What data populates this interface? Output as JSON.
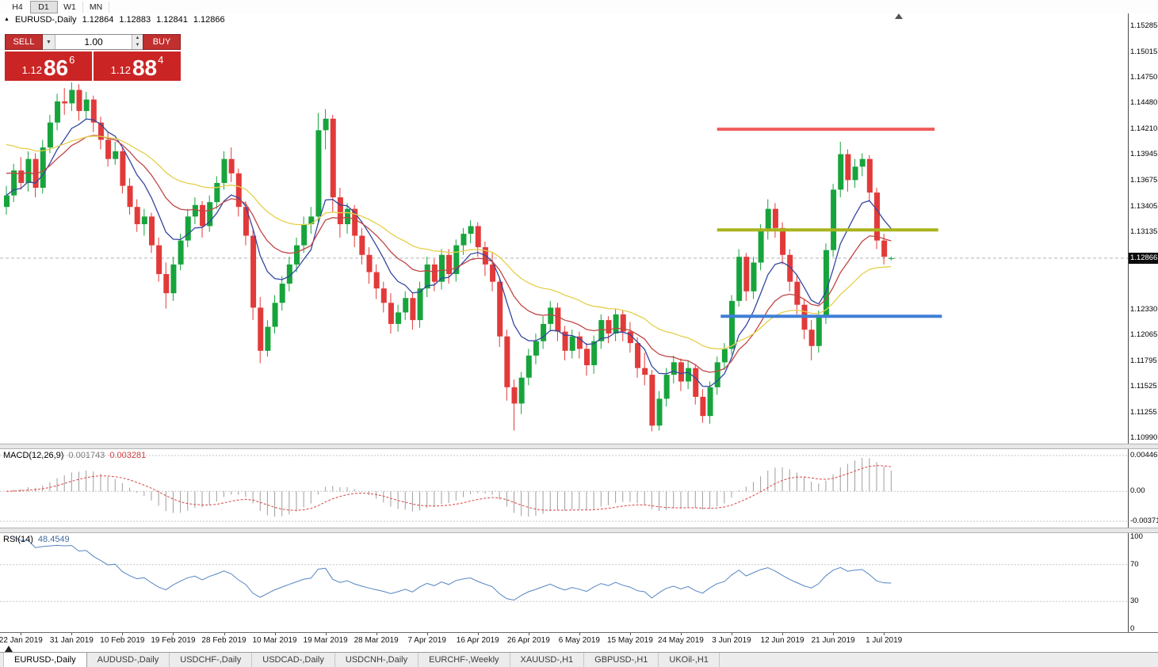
{
  "toolbar": {
    "periods": [
      {
        "label": "H4",
        "active": false
      },
      {
        "label": "D1",
        "active": true
      },
      {
        "label": "W1",
        "active": false
      },
      {
        "label": "MN",
        "active": false
      }
    ]
  },
  "chart_header": {
    "arrow": "▲",
    "title": "EURUSD-,Daily",
    "open": "1.12864",
    "high": "1.12883",
    "low": "1.12841",
    "close": "1.12866"
  },
  "trade_panel": {
    "sell_label": "SELL",
    "buy_label": "BUY",
    "volume": "1.00",
    "sell_price": {
      "small": "1.12",
      "big": "86",
      "sup": "6"
    },
    "buy_price": {
      "small": "1.12",
      "big": "88",
      "sup": "4"
    }
  },
  "macd_panel": {
    "label": "MACD(12,26,9)",
    "value1": "0.001743",
    "value2": "0.003281",
    "axis": [
      "0.004465",
      "0.00",
      "-0.003715"
    ]
  },
  "rsi_panel": {
    "label": "RSI(14)",
    "value": "48.4549",
    "axis": [
      "100",
      "70",
      "30",
      "0"
    ]
  },
  "tabs": [
    {
      "label": "EURUSD-,Daily",
      "active": true
    },
    {
      "label": "AUDUSD-,Daily",
      "active": false
    },
    {
      "label": "USDCHF-,Daily",
      "active": false
    },
    {
      "label": "USDCAD-,Daily",
      "active": false
    },
    {
      "label": "USDCNH-,Daily",
      "active": false
    },
    {
      "label": "EURCHF-,Weekly",
      "active": false
    },
    {
      "label": "XAUUSD-,H1",
      "active": false
    },
    {
      "label": "GBPUSD-,H1",
      "active": false
    },
    {
      "label": "UKOil-,H1",
      "active": false
    }
  ],
  "colors": {
    "bull": "#17a43c",
    "bear": "#e23a3a",
    "ma_fast": "#34469f",
    "ma_mid": "#c04545",
    "ma_slow": "#e5cf4b",
    "macd_hist": "#9e9e9e",
    "macd_signal": "#d94545",
    "rsi": "#5585c2",
    "panel_red": "#cb2424",
    "badge_bg": "#0c0c0c",
    "hline_red": "#ef5b5b",
    "hline_olive": "#a9b41c",
    "hline_blue": "#3f7fd6"
  },
  "chart_data": {
    "type": "candlestick",
    "title": "EURUSD-,Daily",
    "ylim": [
      1.1099,
      1.15285
    ],
    "current_price": 1.12866,
    "current_price_label": "1.12866",
    "price_axis_labels": [
      "1.15285",
      "1.15015",
      "1.14750",
      "1.14480",
      "1.14210",
      "1.13945",
      "1.13675",
      "1.13405",
      "1.13135",
      "1.12330",
      "1.12065",
      "1.11795",
      "1.11525",
      "1.11255",
      "1.10990"
    ],
    "date_labels": [
      {
        "bar": 2,
        "text": "22 Jan 2019"
      },
      {
        "bar": 9,
        "text": "31 Jan 2019"
      },
      {
        "bar": 16,
        "text": "10 Feb 2019"
      },
      {
        "bar": 23,
        "text": "19 Feb 2019"
      },
      {
        "bar": 30,
        "text": "28 Feb 2019"
      },
      {
        "bar": 37,
        "text": "10 Mar 2019"
      },
      {
        "bar": 44,
        "text": "19 Mar 2019"
      },
      {
        "bar": 51,
        "text": "28 Mar 2019"
      },
      {
        "bar": 58,
        "text": "7 Apr 2019"
      },
      {
        "bar": 65,
        "text": "16 Apr 2019"
      },
      {
        "bar": 72,
        "text": "26 Apr 2019"
      },
      {
        "bar": 79,
        "text": "6 May 2019"
      },
      {
        "bar": 86,
        "text": "15 May 2019"
      },
      {
        "bar": 93,
        "text": "24 May 2019"
      },
      {
        "bar": 100,
        "text": "3 Jun 2019"
      },
      {
        "bar": 107,
        "text": "12 Jun 2019"
      },
      {
        "bar": 114,
        "text": "21 Jun 2019"
      },
      {
        "bar": 121,
        "text": "1 Jul 2019"
      }
    ],
    "candles": [
      [
        1.134,
        1.1362,
        1.1332,
        1.1352
      ],
      [
        1.1352,
        1.1385,
        1.1345,
        1.1378
      ],
      [
        1.1378,
        1.1392,
        1.1358,
        1.1365
      ],
      [
        1.1365,
        1.1398,
        1.1356,
        1.139
      ],
      [
        1.139,
        1.1396,
        1.135,
        1.136
      ],
      [
        1.136,
        1.141,
        1.1354,
        1.1402
      ],
      [
        1.1402,
        1.1436,
        1.1396,
        1.1428
      ],
      [
        1.1428,
        1.1458,
        1.142,
        1.145
      ],
      [
        1.145,
        1.1464,
        1.1436,
        1.1448
      ],
      [
        1.1448,
        1.147,
        1.144,
        1.1462
      ],
      [
        1.1462,
        1.1468,
        1.143,
        1.144
      ],
      [
        1.144,
        1.146,
        1.1432,
        1.1452
      ],
      [
        1.1452,
        1.1456,
        1.1418,
        1.1428
      ],
      [
        1.1428,
        1.1434,
        1.14,
        1.141
      ],
      [
        1.141,
        1.1418,
        1.1382,
        1.139
      ],
      [
        1.139,
        1.1408,
        1.1384,
        1.1398
      ],
      [
        1.1398,
        1.1402,
        1.1354,
        1.1362
      ],
      [
        1.1362,
        1.137,
        1.1332,
        1.134
      ],
      [
        1.134,
        1.1348,
        1.1314,
        1.1322
      ],
      [
        1.1322,
        1.1338,
        1.131,
        1.133
      ],
      [
        1.133,
        1.1334,
        1.1292,
        1.13
      ],
      [
        1.13,
        1.1308,
        1.1262,
        1.127
      ],
      [
        1.127,
        1.1282,
        1.1234,
        1.125
      ],
      [
        1.125,
        1.1288,
        1.1242,
        1.128
      ],
      [
        1.128,
        1.1312,
        1.1274,
        1.1305
      ],
      [
        1.1305,
        1.1338,
        1.1298,
        1.133
      ],
      [
        1.133,
        1.135,
        1.1322,
        1.1342
      ],
      [
        1.1342,
        1.1346,
        1.1308,
        1.132
      ],
      [
        1.132,
        1.1352,
        1.1314,
        1.1345
      ],
      [
        1.1345,
        1.1372,
        1.1338,
        1.1365
      ],
      [
        1.1365,
        1.1398,
        1.1358,
        1.139
      ],
      [
        1.139,
        1.1402,
        1.1366,
        1.1375
      ],
      [
        1.1375,
        1.138,
        1.133,
        1.134
      ],
      [
        1.134,
        1.1346,
        1.13,
        1.131
      ],
      [
        1.131,
        1.1316,
        1.1222,
        1.1235
      ],
      [
        1.1235,
        1.1246,
        1.1177,
        1.119
      ],
      [
        1.119,
        1.1222,
        1.1184,
        1.1215
      ],
      [
        1.1215,
        1.1248,
        1.1208,
        1.124
      ],
      [
        1.124,
        1.1268,
        1.1232,
        1.126
      ],
      [
        1.126,
        1.1288,
        1.1252,
        1.128
      ],
      [
        1.128,
        1.1308,
        1.1272,
        1.13
      ],
      [
        1.13,
        1.133,
        1.1292,
        1.1322
      ],
      [
        1.1322,
        1.134,
        1.1312,
        1.133
      ],
      [
        1.133,
        1.1438,
        1.1324,
        1.142
      ],
      [
        1.142,
        1.1442,
        1.14,
        1.1432
      ],
      [
        1.1432,
        1.1436,
        1.1334,
        1.135
      ],
      [
        1.135,
        1.136,
        1.1308,
        1.1322
      ],
      [
        1.1322,
        1.1344,
        1.1312,
        1.1338
      ],
      [
        1.1338,
        1.1342,
        1.1298,
        1.131
      ],
      [
        1.131,
        1.1318,
        1.128,
        1.129
      ],
      [
        1.129,
        1.1298,
        1.126,
        1.1272
      ],
      [
        1.1272,
        1.128,
        1.1244,
        1.1255
      ],
      [
        1.1255,
        1.1262,
        1.123,
        1.124
      ],
      [
        1.124,
        1.125,
        1.1208,
        1.1218
      ],
      [
        1.1218,
        1.1238,
        1.121,
        1.123
      ],
      [
        1.123,
        1.1252,
        1.1222,
        1.1245
      ],
      [
        1.1245,
        1.125,
        1.1212,
        1.1222
      ],
      [
        1.1222,
        1.1262,
        1.1214,
        1.1255
      ],
      [
        1.1255,
        1.1288,
        1.1246,
        1.128
      ],
      [
        1.128,
        1.1286,
        1.1252,
        1.1262
      ],
      [
        1.1262,
        1.1296,
        1.1254,
        1.129
      ],
      [
        1.129,
        1.1296,
        1.126,
        1.127
      ],
      [
        1.127,
        1.1306,
        1.1262,
        1.13
      ],
      [
        1.13,
        1.1318,
        1.129,
        1.1312
      ],
      [
        1.1312,
        1.1326,
        1.1302,
        1.132
      ],
      [
        1.132,
        1.1324,
        1.1288,
        1.1298
      ],
      [
        1.1298,
        1.1304,
        1.1268,
        1.128
      ],
      [
        1.128,
        1.1292,
        1.1252,
        1.1262
      ],
      [
        1.1262,
        1.1266,
        1.1194,
        1.1205
      ],
      [
        1.1205,
        1.1212,
        1.1138,
        1.1152
      ],
      [
        1.1152,
        1.116,
        1.1107,
        1.1135
      ],
      [
        1.1135,
        1.1168,
        1.1124,
        1.1162
      ],
      [
        1.1162,
        1.1192,
        1.1154,
        1.1185
      ],
      [
        1.1185,
        1.1208,
        1.1176,
        1.12
      ],
      [
        1.12,
        1.1226,
        1.1192,
        1.1218
      ],
      [
        1.1218,
        1.1242,
        1.121,
        1.1235
      ],
      [
        1.1235,
        1.124,
        1.12,
        1.121
      ],
      [
        1.121,
        1.1216,
        1.118,
        1.119
      ],
      [
        1.119,
        1.1212,
        1.1182,
        1.1205
      ],
      [
        1.1205,
        1.121,
        1.1182,
        1.1192
      ],
      [
        1.1192,
        1.1198,
        1.1164,
        1.1175
      ],
      [
        1.1175,
        1.1206,
        1.1166,
        1.12
      ],
      [
        1.12,
        1.1228,
        1.1192,
        1.1222
      ],
      [
        1.1222,
        1.1226,
        1.1198,
        1.1208
      ],
      [
        1.1208,
        1.1234,
        1.12,
        1.1228
      ],
      [
        1.1228,
        1.1232,
        1.12,
        1.121
      ],
      [
        1.121,
        1.122,
        1.1188,
        1.1198
      ],
      [
        1.1198,
        1.1204,
        1.1162,
        1.1172
      ],
      [
        1.1172,
        1.1188,
        1.1154,
        1.1165
      ],
      [
        1.1165,
        1.117,
        1.1106,
        1.1112
      ],
      [
        1.1112,
        1.1148,
        1.1107,
        1.114
      ],
      [
        1.114,
        1.1172,
        1.1132,
        1.1165
      ],
      [
        1.1165,
        1.1185,
        1.1156,
        1.1178
      ],
      [
        1.1178,
        1.1182,
        1.1148,
        1.1158
      ],
      [
        1.1158,
        1.118,
        1.115,
        1.1172
      ],
      [
        1.1172,
        1.1176,
        1.1134,
        1.1142
      ],
      [
        1.1142,
        1.115,
        1.1115,
        1.1122
      ],
      [
        1.1122,
        1.1158,
        1.1114,
        1.1152
      ],
      [
        1.1152,
        1.1184,
        1.1144,
        1.1178
      ],
      [
        1.1178,
        1.1198,
        1.117,
        1.1192
      ],
      [
        1.1192,
        1.1248,
        1.1186,
        1.1242
      ],
      [
        1.1242,
        1.1296,
        1.1236,
        1.1288
      ],
      [
        1.1288,
        1.1292,
        1.1242,
        1.1252
      ],
      [
        1.1252,
        1.1288,
        1.1244,
        1.1282
      ],
      [
        1.1282,
        1.1322,
        1.1274,
        1.1315
      ],
      [
        1.1315,
        1.1348,
        1.1306,
        1.1338
      ],
      [
        1.1338,
        1.1344,
        1.1308,
        1.1318
      ],
      [
        1.1318,
        1.1324,
        1.128,
        1.129
      ],
      [
        1.129,
        1.1296,
        1.1252,
        1.1262
      ],
      [
        1.1262,
        1.127,
        1.1228,
        1.1238
      ],
      [
        1.1238,
        1.1244,
        1.1202,
        1.1212
      ],
      [
        1.1212,
        1.1222,
        1.118,
        1.1195
      ],
      [
        1.1195,
        1.1232,
        1.1188,
        1.1225
      ],
      [
        1.1225,
        1.1302,
        1.1218,
        1.1295
      ],
      [
        1.1295,
        1.1364,
        1.1288,
        1.1358
      ],
      [
        1.1358,
        1.1408,
        1.135,
        1.1395
      ],
      [
        1.1395,
        1.14,
        1.1356,
        1.1368
      ],
      [
        1.1368,
        1.139,
        1.136,
        1.1382
      ],
      [
        1.1382,
        1.1396,
        1.1372,
        1.139
      ],
      [
        1.139,
        1.1394,
        1.1346,
        1.1355
      ],
      [
        1.1355,
        1.136,
        1.1296,
        1.1305
      ],
      [
        1.1305,
        1.1312,
        1.128,
        1.1288
      ],
      [
        1.12864,
        1.12883,
        1.12841,
        1.12866
      ]
    ],
    "moving_averages": [
      {
        "name": "ma-fast-line",
        "period": 8,
        "color": "#34469f"
      },
      {
        "name": "ma-mid-line",
        "period": 17,
        "color": "#c04545",
        "seed": 1.1375
      },
      {
        "name": "ma-slow-line",
        "period": 34,
        "color": "#e5cf4b",
        "seed": 1.1405
      }
    ],
    "hlines": [
      {
        "name": "resistance-line",
        "price": 1.1421,
        "bar_start": 98,
        "bar_end": 128,
        "color": "#ef5b5b"
      },
      {
        "name": "mid-line",
        "price": 1.1316,
        "bar_start": 98,
        "bar_end": 128.5,
        "color": "#a9b41c"
      },
      {
        "name": "support-line",
        "price": 1.1226,
        "bar_start": 98.5,
        "bar_end": 129,
        "color": "#3f7fd6"
      }
    ],
    "macd": {
      "fast": 12,
      "slow": 26,
      "signal": 9,
      "ylim": [
        -0.003715,
        0.004465
      ]
    },
    "rsi": {
      "period": 14,
      "ylim": [
        0,
        100
      ],
      "levels": [
        70,
        30
      ]
    }
  }
}
